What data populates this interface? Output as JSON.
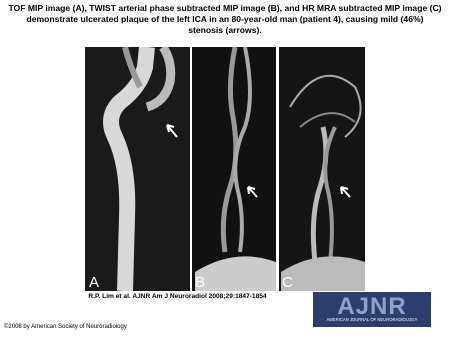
{
  "title": "TOF MIP image (A), TWIST arterial phase subtracted MIP image (B), and HR MRA subtracted MIP image (C) demonstrate ulcerated plaque of the left ICA in an 80-year-old man (patient 4), causing mild (46%) stenosis (arrows).",
  "panels": [
    {
      "label": "A"
    },
    {
      "label": "B"
    },
    {
      "label": "C"
    }
  ],
  "citation": "R.P. Lim et al. AJNR Am J Neuroradiol 2008;29:1847-1854",
  "copyright": "©2008 by American Society of Neuroradiology",
  "logo": {
    "name": "AJNR",
    "subtitle": "AMERICAN JOURNAL OF NEURORADIOLOGY"
  }
}
